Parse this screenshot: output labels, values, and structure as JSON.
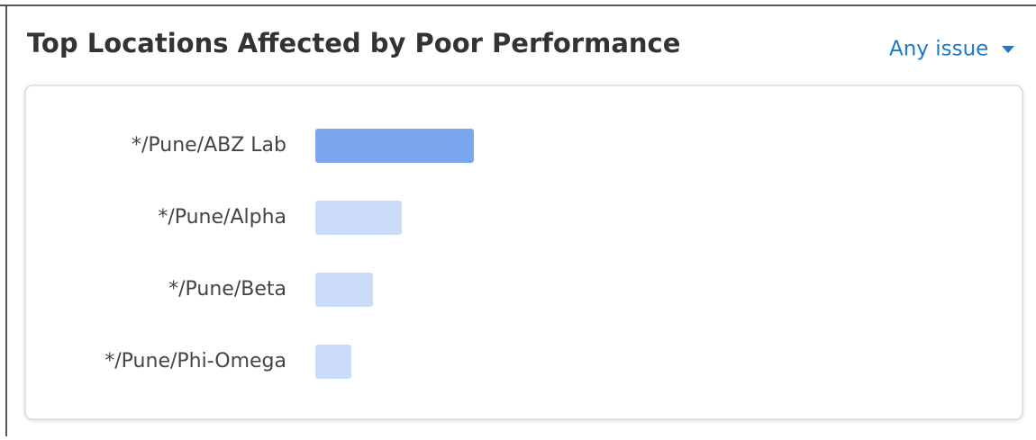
{
  "header": {
    "title": "Top Locations Affected by Poor Performance",
    "filter": "Any issue"
  },
  "chart_data": {
    "type": "bar",
    "orientation": "horizontal",
    "categories": [
      "*/Pune/ABZ Lab",
      "*/Pune/Alpha",
      "*/Pune/Beta",
      "*/Pune/Phi-Omega"
    ],
    "values": [
      44,
      24,
      16,
      10
    ],
    "colors": [
      "#7aa7ee",
      "#c9dbf7",
      "#c9dbf7",
      "#c9dbf7"
    ],
    "xlim": [
      0,
      100
    ]
  }
}
